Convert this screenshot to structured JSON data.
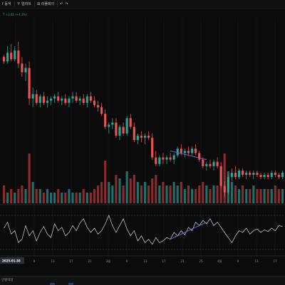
{
  "toolbar": {
    "item1": "f 등식",
    "item2": "〒 얼러트",
    "item3": "⊞ 리플레이",
    "undo": "↶",
    "redo": "↷"
  },
  "legend": {
    "text": "T  +3,41 (+4.3%)"
  },
  "colors": {
    "up": "#26a69a",
    "down": "#ef5350",
    "volume_up": "#1f6f6a",
    "volume_down": "#8c2b2b",
    "trendline": "#5a6fd6",
    "background": "#0b0b0b"
  },
  "x_axis": {
    "date_badge": "2025-01-30",
    "ticks": [
      "3",
      "9",
      "13",
      "17",
      "21",
      "3월",
      "9",
      "13",
      "17",
      "21",
      "25",
      "4월",
      "9",
      "13",
      "17"
    ]
  },
  "bottom": {
    "tab_label": "인텔렉날"
  },
  "chart_data": {
    "type": "candlestick",
    "price": {
      "ohlc": [
        [
          77,
          78,
          74,
          75
        ],
        [
          75,
          82,
          74,
          79
        ],
        [
          79,
          83,
          75,
          76
        ],
        [
          76,
          82,
          75,
          80
        ],
        [
          80,
          84,
          72,
          74
        ],
        [
          74,
          77,
          68,
          70
        ],
        [
          70,
          74,
          66,
          72
        ],
        [
          72,
          75,
          55,
          58
        ],
        [
          58,
          63,
          54,
          60
        ],
        [
          60,
          62,
          55,
          56
        ],
        [
          56,
          60,
          54,
          59
        ],
        [
          59,
          61,
          55,
          56
        ],
        [
          56,
          59,
          54,
          57
        ],
        [
          57,
          59,
          55,
          58
        ],
        [
          58,
          60,
          56,
          59
        ],
        [
          59,
          61,
          56,
          57
        ],
        [
          57,
          59,
          55,
          58
        ],
        [
          58,
          60,
          55,
          56
        ],
        [
          56,
          59,
          54,
          58
        ],
        [
          58,
          61,
          56,
          59
        ],
        [
          59,
          61,
          56,
          57
        ],
        [
          57,
          59,
          55,
          58
        ],
        [
          58,
          60,
          55,
          56
        ],
        [
          56,
          60,
          54,
          59
        ],
        [
          59,
          61,
          56,
          57
        ],
        [
          57,
          59,
          54,
          55
        ],
        [
          55,
          57,
          52,
          54
        ],
        [
          54,
          56,
          50,
          51
        ],
        [
          51,
          53,
          44,
          45
        ],
        [
          45,
          47,
          42,
          46
        ],
        [
          46,
          49,
          44,
          47
        ],
        [
          47,
          49,
          40,
          41
        ],
        [
          41,
          46,
          39,
          45
        ],
        [
          45,
          47,
          41,
          42
        ],
        [
          42,
          50,
          41,
          49
        ],
        [
          49,
          51,
          44,
          45
        ],
        [
          45,
          47,
          38,
          39
        ],
        [
          39,
          42,
          37,
          41
        ],
        [
          41,
          43,
          38,
          40
        ],
        [
          40,
          42,
          37,
          41
        ],
        [
          41,
          43,
          39,
          40
        ],
        [
          40,
          42,
          30,
          31
        ],
        [
          31,
          34,
          27,
          28
        ],
        [
          28,
          32,
          27,
          31
        ],
        [
          31,
          33,
          28,
          30
        ],
        [
          30,
          32,
          28,
          31
        ],
        [
          31,
          33,
          29,
          30
        ],
        [
          30,
          33,
          28,
          32
        ],
        [
          32,
          36,
          31,
          35
        ],
        [
          35,
          37,
          32,
          33
        ],
        [
          33,
          35,
          31,
          34
        ],
        [
          34,
          36,
          32,
          33
        ],
        [
          33,
          36,
          32,
          35
        ],
        [
          35,
          37,
          32,
          33
        ],
        [
          33,
          34,
          29,
          30
        ],
        [
          30,
          31,
          26,
          27
        ],
        [
          27,
          29,
          25,
          28
        ],
        [
          28,
          30,
          26,
          27
        ],
        [
          27,
          30,
          25,
          29
        ],
        [
          29,
          31,
          26,
          27
        ],
        [
          27,
          29,
          17,
          18
        ],
        [
          18,
          20,
          13,
          15
        ],
        [
          15,
          23,
          14,
          22
        ],
        [
          22,
          26,
          20,
          24
        ],
        [
          24,
          27,
          21,
          22
        ],
        [
          22,
          26,
          21,
          25
        ],
        [
          25,
          26,
          22,
          23
        ],
        [
          23,
          25,
          21,
          24
        ],
        [
          24,
          25,
          22,
          23
        ],
        [
          23,
          25,
          21,
          24
        ],
        [
          24,
          25,
          22,
          23
        ],
        [
          23,
          24,
          21,
          22
        ],
        [
          22,
          24,
          21,
          23
        ],
        [
          23,
          24,
          21,
          22
        ],
        [
          22,
          25,
          21,
          24
        ],
        [
          24,
          25,
          22,
          23
        ],
        [
          23,
          24,
          21,
          22
        ],
        [
          22,
          25,
          21,
          24
        ]
      ],
      "ylim": [
        10,
        95
      ],
      "trendline": {
        "from_index": 46,
        "from_value": 34,
        "to_index": 56,
        "to_value": 30
      }
    },
    "volume": {
      "values": [
        5,
        3,
        4,
        3,
        4,
        5,
        4,
        14,
        6,
        4,
        4,
        3,
        4,
        3,
        3,
        4,
        3,
        3,
        4,
        3,
        3,
        3,
        4,
        3,
        3,
        4,
        5,
        6,
        12,
        6,
        5,
        8,
        7,
        5,
        9,
        7,
        8,
        6,
        5,
        6,
        5,
        7,
        8,
        5,
        6,
        5,
        5,
        6,
        5,
        6,
        4,
        5,
        4,
        4,
        5,
        6,
        5,
        4,
        5,
        5,
        6,
        14,
        9,
        6,
        5,
        4,
        5,
        4,
        4,
        5,
        4,
        4,
        4,
        4,
        4,
        5,
        4,
        4
      ],
      "ylim": [
        0,
        16
      ]
    },
    "oscillator": {
      "values": [
        55,
        62,
        48,
        52,
        38,
        42,
        58,
        46,
        52,
        40,
        50,
        57,
        48,
        44,
        60,
        52,
        56,
        46,
        50,
        58,
        52,
        61,
        66,
        56,
        50,
        55,
        48,
        52,
        60,
        70,
        58,
        50,
        58,
        66,
        54,
        46,
        52,
        40,
        46,
        38,
        42,
        36,
        44,
        38,
        40,
        44,
        42,
        50,
        46,
        52,
        47,
        56,
        52,
        62,
        58,
        64,
        60,
        66,
        58,
        62,
        56,
        50,
        44,
        38,
        46,
        52,
        50,
        55,
        48,
        52,
        54,
        50,
        53,
        51,
        55,
        52,
        58,
        57
      ],
      "ylim": [
        25,
        80
      ],
      "levels": [
        70,
        30
      ],
      "trendline": {
        "from_index": 46,
        "from_value": 42,
        "to_index": 56,
        "to_value": 62
      }
    }
  }
}
